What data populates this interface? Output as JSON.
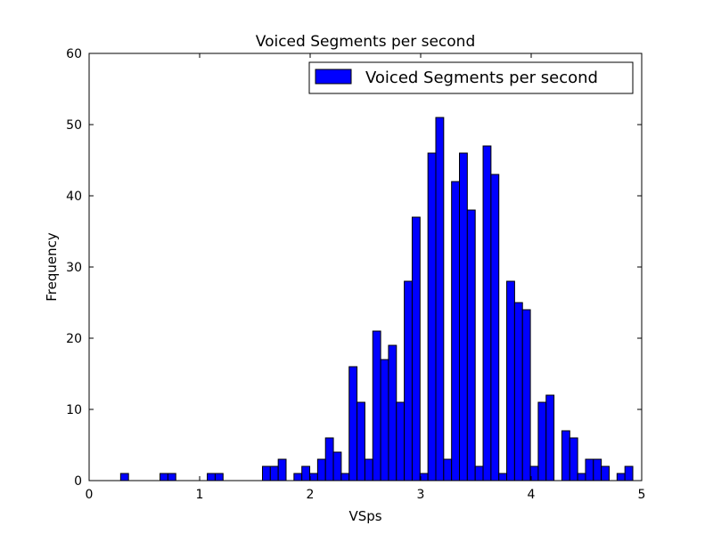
{
  "chart_data": {
    "type": "bar",
    "title": "Voiced Segments per second",
    "xlabel": "VSps",
    "ylabel": "Frequency",
    "xlim": [
      0,
      5
    ],
    "ylim": [
      0,
      60
    ],
    "xticks": [
      "0",
      "1",
      "2",
      "3",
      "4",
      "5"
    ],
    "yticks": [
      "0",
      "10",
      "20",
      "30",
      "40",
      "50",
      "60"
    ],
    "legend": {
      "label": "Voiced Segments per second",
      "position": "top-right"
    },
    "bar_color": "#0000ff",
    "bin_start": 0.285,
    "bin_width": 0.0713,
    "values": [
      1,
      0,
      0,
      0,
      0,
      1,
      1,
      0,
      0,
      0,
      0,
      1,
      1,
      0,
      0,
      0,
      0,
      0,
      2,
      2,
      3,
      0,
      1,
      2,
      1,
      3,
      6,
      4,
      1,
      16,
      11,
      3,
      21,
      17,
      19,
      11,
      28,
      37,
      1,
      46,
      51,
      3,
      42,
      46,
      38,
      2,
      47,
      43,
      1,
      28,
      25,
      24,
      2,
      11,
      12,
      0,
      7,
      6,
      1,
      3,
      3,
      2,
      0,
      1,
      2
    ]
  }
}
